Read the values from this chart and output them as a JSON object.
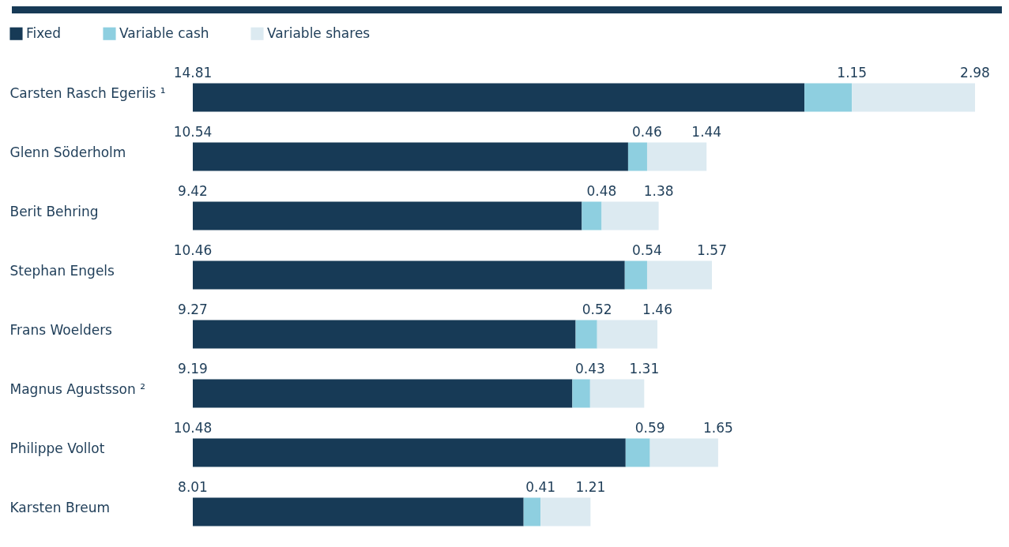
{
  "chart_data": {
    "type": "bar",
    "orientation": "horizontal",
    "stacked": true,
    "data_labels": true,
    "legend": "top left",
    "categories": [
      "Carsten Rasch Egeriis ¹",
      "Glenn Söderholm",
      "Berit Behring",
      "Stephan Engels",
      "Frans Woelders",
      "Magnus Agustsson ²",
      "Philippe Vollot",
      "Karsten Breum"
    ],
    "series": [
      {
        "name": "Fixed",
        "color": "#173a56",
        "values": [
          14.81,
          10.54,
          9.42,
          10.46,
          9.27,
          9.19,
          10.48,
          8.01
        ]
      },
      {
        "name": "Variable cash",
        "color": "#8ecfe0",
        "values": [
          1.15,
          0.46,
          0.48,
          0.54,
          0.52,
          0.43,
          0.59,
          0.41
        ]
      },
      {
        "name": "Variable shares",
        "color": "#dceaf1",
        "values": [
          2.98,
          1.44,
          1.38,
          1.57,
          1.46,
          1.31,
          1.65,
          1.21
        ]
      }
    ]
  }
}
